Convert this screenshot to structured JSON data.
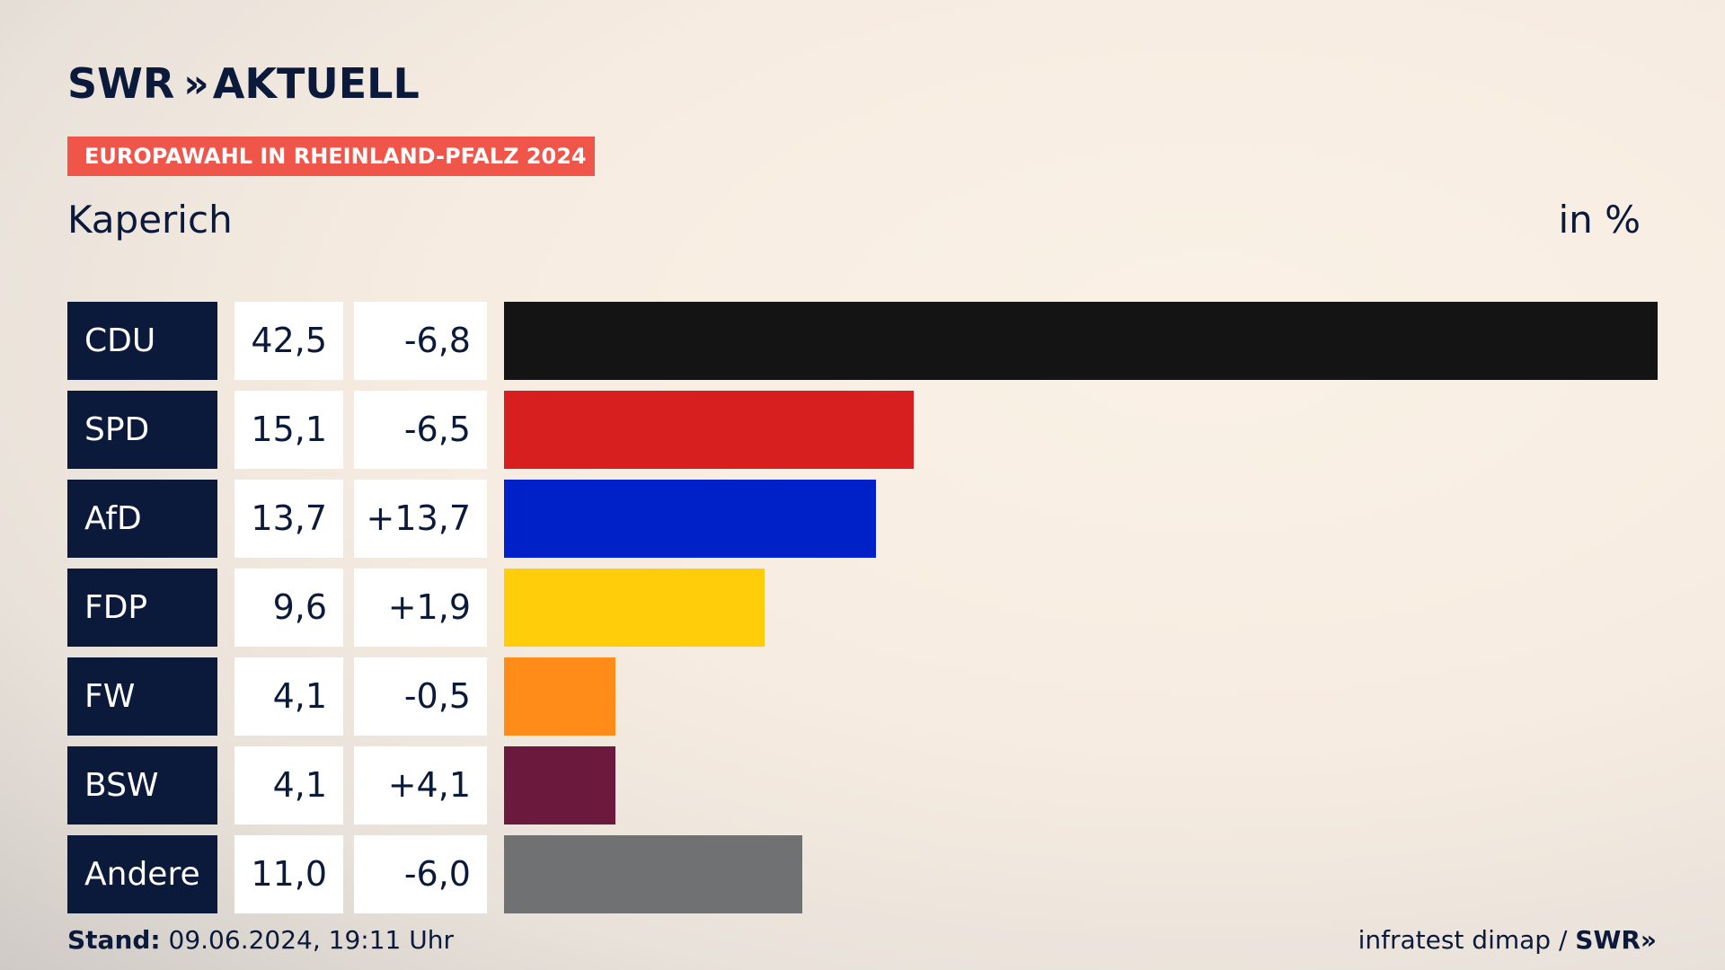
{
  "header": {
    "logo_text": "SWR",
    "logo_chevrons": "»",
    "logo_suffix": "AKTUELL",
    "badge": "EUROPAWAHL IN RHEINLAND-PFALZ 2024",
    "place": "Kaperich",
    "unit": "in %"
  },
  "chart_data": {
    "type": "bar",
    "orientation": "horizontal",
    "categories": [
      "CDU",
      "SPD",
      "AfD",
      "FDP",
      "FW",
      "BSW",
      "Andere"
    ],
    "values": [
      42.5,
      15.1,
      13.7,
      9.6,
      4.1,
      4.1,
      11.0
    ],
    "value_labels": [
      "42,5",
      "15,1",
      "13,7",
      "9,6",
      "4,1",
      "4,1",
      "11,0"
    ],
    "diff_labels": [
      "-6,8",
      "-6,5",
      "+13,7",
      "+1,9",
      "-0,5",
      "+4,1",
      "-6,0"
    ],
    "colors": [
      "#141414",
      "#d71f1f",
      "#0021c8",
      "#ffcd0a",
      "#ff8c19",
      "#6b1a3d",
      "#707173"
    ],
    "xlim": [
      0,
      42.5
    ]
  },
  "footer": {
    "stand_label": "Stand:",
    "stand_value": "09.06.2024, 19:11 Uhr",
    "source": "infratest dimap / ",
    "source_brand": "SWR»"
  }
}
